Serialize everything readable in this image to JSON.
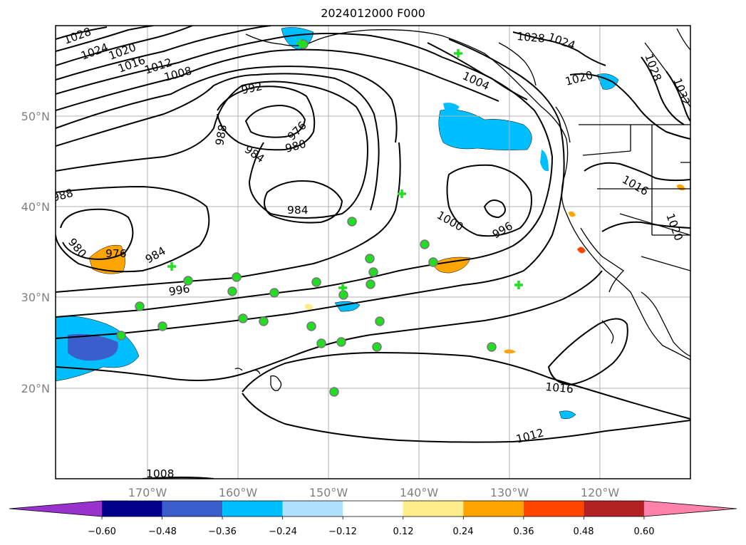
{
  "title": "2024012000 F000",
  "map": {
    "projection": "cylindrical lat-lon",
    "lon_range": [
      -180,
      -110
    ],
    "lat_range": [
      10,
      60
    ],
    "gridlines": true,
    "lat_labels": [
      "50°N",
      "40°N",
      "30°N",
      "20°N"
    ],
    "lon_labels": [
      "170°W",
      "160°W",
      "150°W",
      "140°W",
      "130°W",
      "120°W"
    ],
    "contour_levels_shown": [
      "1028",
      "1024",
      "1020",
      "1016",
      "1012",
      "1008",
      "992",
      "988",
      "984",
      "980",
      "976",
      "1000",
      "996",
      "984",
      "980",
      "976",
      "984",
      "996",
      "1000",
      "996",
      "1028",
      "1024",
      "1004",
      "1020",
      "1028",
      "1032",
      "1016",
      "1020",
      "1016",
      "1012",
      "1008",
      "988",
      "984"
    ],
    "contour_units": "hPa",
    "station_markers": {
      "circle_color": "#22dd22",
      "circle_count": 30,
      "plus_count": 6
    }
  },
  "colorbar": {
    "ticks": [
      "−0.60",
      "−0.48",
      "−0.36",
      "−0.24",
      "−0.12",
      "0.12",
      "0.24",
      "0.36",
      "0.48",
      "0.60"
    ],
    "colors": [
      "#9932cc",
      "#00008b",
      "#3a5fcd",
      "#00bfff",
      "#b0e2ff",
      "#ffffff",
      "#ffec8b",
      "#ffa500",
      "#ff4500",
      "#b22222",
      "#ff82ab"
    ]
  }
}
